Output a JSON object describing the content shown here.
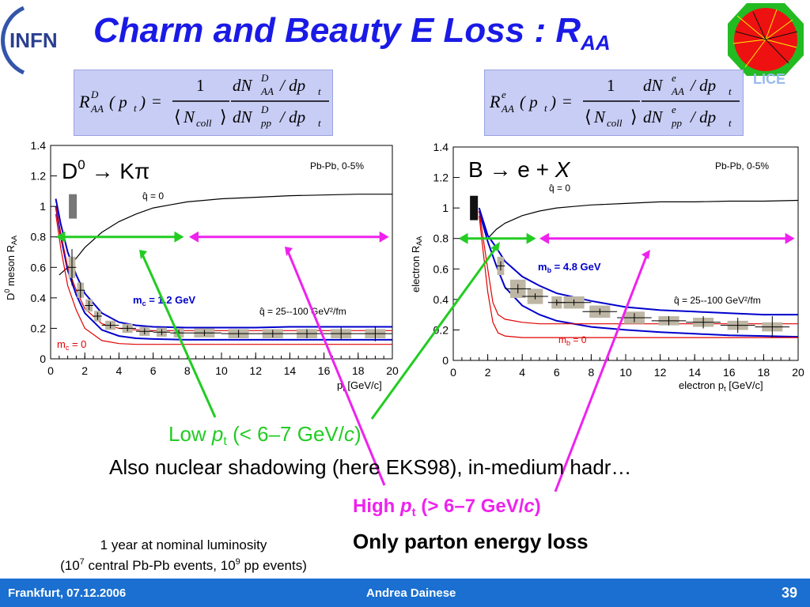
{
  "header": {
    "logo_text": "INFN",
    "title_main": "Charm and Beauty E Loss : R",
    "title_sub": "AA",
    "alice_logo_text": "LICE"
  },
  "formulas": {
    "left": {
      "lhs": "R",
      "sup": "D",
      "sub": "AA",
      "arg": "( p",
      "arg_sub": "t",
      "arg_close": ")",
      "eq": "=",
      "num1": "1",
      "den1": "N",
      "den1_sub": "coll",
      "num2": "dN",
      "num2_sup": "D",
      "num2_sub": "AA",
      "num2_tail": "/ dp",
      "num2_tail_sub": "t",
      "den2": "dN",
      "den2_sup": "D",
      "den2_sub": "pp",
      "den2_tail": "/ dp",
      "den2_tail_sub": "t"
    },
    "right": {
      "lhs": "R",
      "sup": "e",
      "sub": "AA",
      "arg": "( p",
      "arg_sub": "t",
      "arg_close": ")",
      "eq": "=",
      "num1": "1",
      "den1": "N",
      "den1_sub": "coll",
      "num2": "dN",
      "num2_sup": "e",
      "num2_sub": "AA",
      "num2_tail": "/ dp",
      "num2_tail_sub": "t",
      "den2": "dN",
      "den2_sup": "e",
      "den2_sub": "pp",
      "den2_tail": "/ dp",
      "den2_tail_sub": "t"
    }
  },
  "chart_data": [
    {
      "type": "line",
      "process": "D0 → Kπ",
      "process_parts": {
        "a": "D",
        "a_sup": "0",
        "arrow": " → ",
        "b": "Kπ"
      },
      "system": "Pb-Pb,  0-5%",
      "ylabel_main": "D",
      "ylabel_sup": "0",
      "ylabel_rest": " meson R",
      "ylabel_sub": "AA",
      "xlabel_main": "p",
      "xlabel_sub": "t",
      "xlabel_rest": " [GeV/c]",
      "xlim": [
        0,
        20
      ],
      "ylim": [
        0,
        1.4
      ],
      "xticks": [
        0,
        2,
        4,
        6,
        8,
        10,
        12,
        14,
        16,
        18,
        20
      ],
      "yticks": [
        0,
        0.2,
        0.4,
        0.6,
        0.8,
        1,
        1.2,
        1.4
      ],
      "ytick_labels": [
        "0",
        "0.2",
        "0.4",
        "0.6",
        "0.8",
        "1",
        "1.2",
        "1.4"
      ],
      "annotations": {
        "q0": "q̂ = 0",
        "qband": "q̂ = 25--100 GeV²/fm",
        "mass_label": "m",
        "mass_sub": "c",
        "mass_value": " = 1.2 GeV",
        "mass0_label": "m",
        "mass0_sub": "c",
        "mass0_value": " = 0"
      },
      "series": [
        {
          "key": "q0",
          "color": "#000000",
          "x": [
            0.5,
            1,
            1.5,
            2,
            3,
            4,
            5,
            6,
            7,
            8,
            10,
            12,
            14,
            16,
            18,
            20
          ],
          "y": [
            0.55,
            0.6,
            0.66,
            0.73,
            0.83,
            0.9,
            0.95,
            0.99,
            1.01,
            1.03,
            1.05,
            1.06,
            1.07,
            1.075,
            1.08,
            1.08
          ]
        },
        {
          "key": "mass_upper",
          "color": "#0000cc",
          "x": [
            0.3,
            0.6,
            1,
            1.5,
            2,
            3,
            4,
            5,
            6,
            8,
            10,
            12,
            14,
            16,
            18,
            20
          ],
          "y": [
            1.05,
            0.88,
            0.7,
            0.55,
            0.43,
            0.3,
            0.24,
            0.22,
            0.21,
            0.205,
            0.205,
            0.205,
            0.21,
            0.21,
            0.21,
            0.21
          ]
        },
        {
          "key": "mass_lower",
          "color": "#0000cc",
          "x": [
            0.3,
            0.6,
            1,
            1.5,
            2,
            3,
            4,
            5,
            6,
            8,
            10,
            12,
            14,
            16,
            18,
            20
          ],
          "y": [
            1.0,
            0.8,
            0.58,
            0.42,
            0.3,
            0.19,
            0.15,
            0.135,
            0.13,
            0.125,
            0.125,
            0.125,
            0.125,
            0.125,
            0.125,
            0.125
          ]
        },
        {
          "key": "m0_upper",
          "color": "#e00000",
          "x": [
            0.3,
            0.6,
            1,
            1.5,
            2,
            3,
            4,
            5,
            6,
            8,
            10,
            12,
            14,
            16,
            18,
            20
          ],
          "y": [
            1.0,
            0.82,
            0.6,
            0.45,
            0.33,
            0.23,
            0.2,
            0.19,
            0.185,
            0.185,
            0.185,
            0.185,
            0.185,
            0.185,
            0.185,
            0.185
          ]
        },
        {
          "key": "m0_lower",
          "color": "#e00000",
          "x": [
            0.3,
            0.6,
            1,
            1.5,
            2,
            3,
            4,
            5,
            6,
            8,
            10,
            12,
            14,
            16,
            18,
            20
          ],
          "y": [
            0.95,
            0.72,
            0.48,
            0.32,
            0.2,
            0.12,
            0.1,
            0.095,
            0.095,
            0.095,
            0.095,
            0.095,
            0.095,
            0.095,
            0.095,
            0.095
          ]
        }
      ],
      "points": {
        "x": [
          1.25,
          1.75,
          2.25,
          2.75,
          3.5,
          4.5,
          5.5,
          6.5,
          7.5,
          9,
          11,
          13,
          15,
          17,
          19
        ],
        "y": [
          0.6,
          0.45,
          0.35,
          0.28,
          0.22,
          0.2,
          0.18,
          0.175,
          0.17,
          0.17,
          0.165,
          0.165,
          0.165,
          0.165,
          0.165
        ],
        "xerr": [
          0.25,
          0.25,
          0.25,
          0.25,
          0.5,
          0.5,
          0.5,
          0.5,
          0.5,
          1,
          1,
          1,
          1,
          1,
          1
        ],
        "yerr": [
          0.12,
          0.05,
          0.03,
          0.025,
          0.02,
          0.02,
          0.02,
          0.02,
          0.02,
          0.02,
          0.025,
          0.025,
          0.03,
          0.04,
          0.05
        ],
        "syst": [
          0.07,
          0.05,
          0.04,
          0.035,
          0.03,
          0.03,
          0.03,
          0.03,
          0.03,
          0.03,
          0.03,
          0.03,
          0.03,
          0.03,
          0.03
        ]
      },
      "norm_box": {
        "x": 1.3,
        "y": 1.0,
        "err": 0.08
      },
      "arrows": {
        "green": [
          0.3,
          7.8
        ],
        "magenta": [
          8.1,
          19.8
        ],
        "y": 0.8
      }
    },
    {
      "type": "line",
      "process": "B → e + X",
      "process_parts": {
        "a": "B",
        "arrow": " → ",
        "b": "e + ",
        "c": "X"
      },
      "system": "Pb-Pb, 0-5%",
      "ylabel_main": "electron R",
      "ylabel_sub": "AA",
      "xlabel_main": "electron p",
      "xlabel_sub": "t",
      "xlabel_rest": " [GeV/c]",
      "xlim": [
        0,
        20
      ],
      "ylim": [
        0,
        1.4
      ],
      "xticks": [
        0,
        2,
        4,
        6,
        8,
        10,
        12,
        14,
        16,
        18,
        20
      ],
      "yticks": [
        0,
        0.2,
        0.4,
        0.6,
        0.8,
        1,
        1.2,
        1.4
      ],
      "ytick_labels": [
        "0",
        "0.2",
        "0.4",
        "0.6",
        "0.8",
        "1",
        "1.2",
        "1.4"
      ],
      "annotations": {
        "q0": "q̂ = 0",
        "qband": "q̂ = 25--100 GeV²/fm",
        "mass_label": "m",
        "mass_sub": "b",
        "mass_value": " = 4.8 GeV",
        "mass0_label": "m",
        "mass0_sub": "b",
        "mass0_value": " = 0"
      },
      "series": [
        {
          "key": "q0",
          "color": "#000000",
          "x": [
            2,
            2.5,
            3,
            4,
            5,
            6,
            7,
            8,
            10,
            12,
            14,
            16,
            18,
            20
          ],
          "y": [
            0.8,
            0.86,
            0.9,
            0.95,
            0.98,
            1.0,
            1.01,
            1.02,
            1.03,
            1.04,
            1.04,
            1.045,
            1.045,
            1.05
          ]
        },
        {
          "key": "mass_upper",
          "color": "#0000cc",
          "x": [
            1.5,
            2,
            2.5,
            3,
            4,
            5,
            6,
            8,
            10,
            12,
            14,
            16,
            18,
            20
          ],
          "y": [
            1.0,
            0.82,
            0.74,
            0.65,
            0.55,
            0.49,
            0.44,
            0.39,
            0.35,
            0.33,
            0.32,
            0.31,
            0.3,
            0.3
          ]
        },
        {
          "key": "mass_lower",
          "color": "#0000cc",
          "x": [
            1.5,
            2,
            2.5,
            3,
            4,
            5,
            6,
            8,
            10,
            12,
            14,
            16,
            18,
            20
          ],
          "y": [
            0.98,
            0.78,
            0.62,
            0.48,
            0.36,
            0.3,
            0.26,
            0.22,
            0.2,
            0.185,
            0.175,
            0.165,
            0.16,
            0.155
          ]
        },
        {
          "key": "m0_upper",
          "color": "#e00000",
          "x": [
            1.5,
            2,
            2.3,
            2.6,
            3,
            4,
            5,
            6,
            8,
            10,
            12,
            14,
            16,
            18,
            20
          ],
          "y": [
            0.98,
            0.6,
            0.38,
            0.3,
            0.27,
            0.25,
            0.24,
            0.24,
            0.24,
            0.24,
            0.24,
            0.24,
            0.24,
            0.24,
            0.24
          ]
        },
        {
          "key": "m0_lower",
          "color": "#e00000",
          "x": [
            1.5,
            2,
            2.3,
            2.6,
            3,
            4,
            5,
            6,
            8,
            10,
            12,
            14,
            16,
            18,
            20
          ],
          "y": [
            0.95,
            0.45,
            0.25,
            0.18,
            0.16,
            0.15,
            0.15,
            0.15,
            0.15,
            0.15,
            0.15,
            0.15,
            0.15,
            0.15,
            0.15
          ]
        }
      ],
      "points": {
        "x": [
          2.75,
          3.75,
          4.75,
          6,
          7,
          8.5,
          10.5,
          12.5,
          14.5,
          16.5,
          18.5
        ],
        "y": [
          0.62,
          0.47,
          0.42,
          0.38,
          0.38,
          0.32,
          0.28,
          0.26,
          0.25,
          0.23,
          0.22
        ],
        "xerr": [
          0.25,
          0.75,
          0.75,
          0.5,
          1,
          1,
          1,
          1,
          1,
          1,
          1
        ],
        "yerr": [
          0.03,
          0.03,
          0.02,
          0.02,
          0.02,
          0.02,
          0.03,
          0.03,
          0.04,
          0.05,
          0.07
        ],
        "syst": [
          0.06,
          0.06,
          0.05,
          0.04,
          0.04,
          0.04,
          0.04,
          0.03,
          0.03,
          0.03,
          0.03
        ]
      },
      "norm_box": {
        "x": 1.2,
        "y": 1.0,
        "err": 0.08
      },
      "arrows": {
        "green": [
          0.3,
          4.8
        ],
        "magenta": [
          5.0,
          19.8
        ],
        "y": 0.8
      }
    }
  ],
  "annotations": {
    "low_a": "Low ",
    "low_p": "p",
    "low_sub": "t",
    "low_b": " (< 6–7 GeV/",
    "low_c": "c",
    "low_d": ")",
    "shadowing": "Also nuclear shadowing (here EKS98), in-medium hadr…",
    "high_a": "High ",
    "high_p": "p",
    "high_sub": "t",
    "high_b": " (> 6–7 GeV/",
    "high_c": "c",
    "high_d": ")",
    "parton": "Only parton energy loss",
    "lum1": "1 year at nominal luminosity",
    "lum2_a": "(10",
    "lum2_sup1": "7",
    "lum2_b": " central Pb-Pb events, 10",
    "lum2_sup2": "9",
    "lum2_c": " pp events)"
  },
  "colors": {
    "green": "#22cc22",
    "magenta": "#ee22ee",
    "title_blue": "#1a1ae6",
    "footer_blue": "#1a6fd0"
  },
  "footer": {
    "location": "Frankfurt, 07.12.2006",
    "author": "Andrea Dainese",
    "page": "39"
  }
}
